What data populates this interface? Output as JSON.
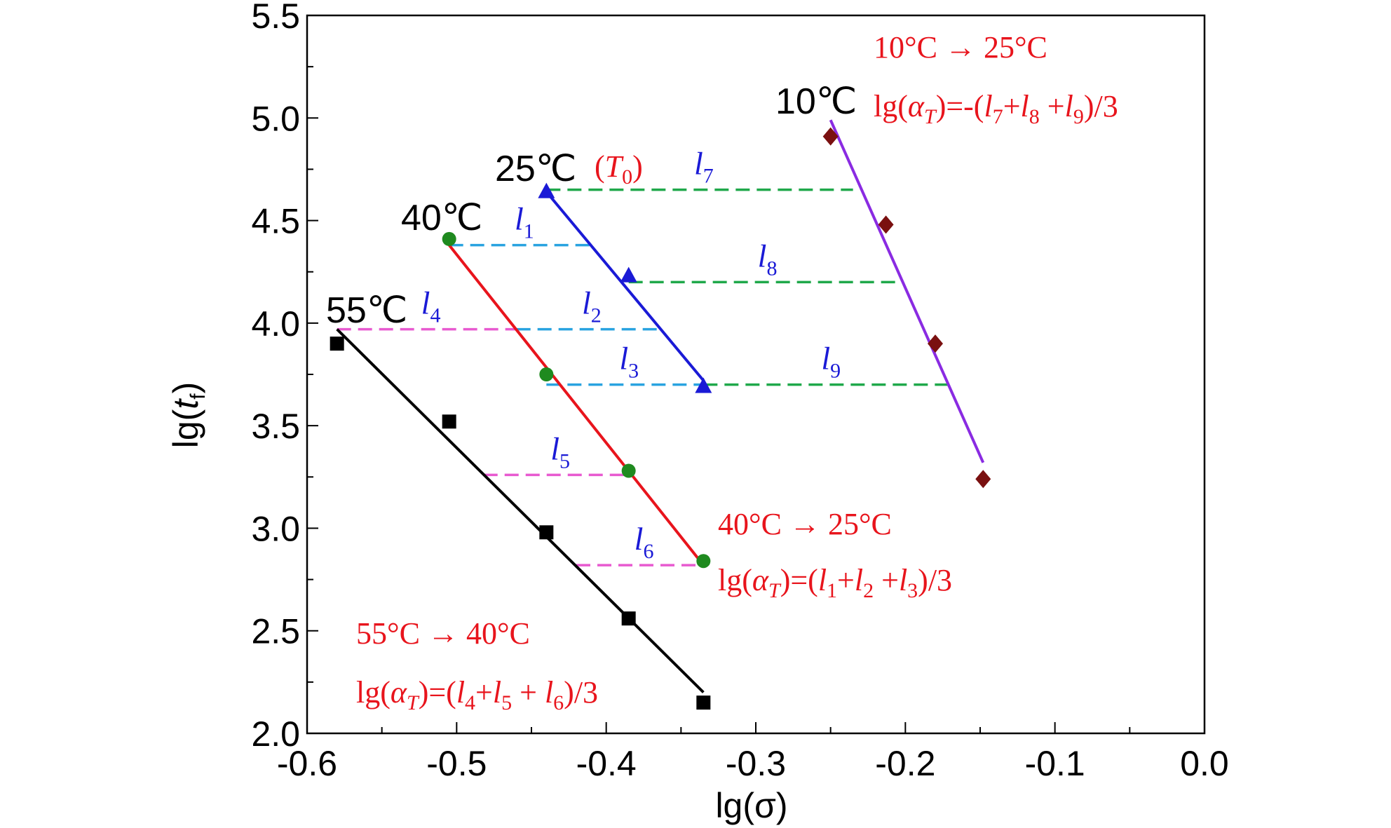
{
  "chart_data": {
    "type": "scatter",
    "xlabel": "lg(σ)",
    "ylabel": "lg(t_f)",
    "xlim": [
      -0.6,
      0.0
    ],
    "ylim": [
      2.0,
      5.5
    ],
    "xticks": [
      "-0.6",
      "-0.5",
      "-0.4",
      "-0.3",
      "-0.2",
      "-0.1",
      "0.0"
    ],
    "yticks": [
      "2.0",
      "2.5",
      "3.0",
      "3.5",
      "4.0",
      "4.5",
      "5.0",
      "5.5"
    ],
    "grid": false,
    "series": [
      {
        "name": "55℃",
        "color": "#000000",
        "marker": "square",
        "points": [
          [
            -0.58,
            3.9
          ],
          [
            -0.505,
            3.52
          ],
          [
            -0.44,
            2.98
          ],
          [
            -0.385,
            2.56
          ],
          [
            -0.335,
            2.15
          ]
        ],
        "fit": [
          [
            -0.58,
            3.97
          ],
          [
            -0.335,
            2.2
          ]
        ]
      },
      {
        "name": "40℃",
        "color": "#e8141c",
        "marker": "circle",
        "marker_color": "#1f8a1f",
        "points": [
          [
            -0.505,
            4.41
          ],
          [
            -0.44,
            3.75
          ],
          [
            -0.385,
            3.28
          ],
          [
            -0.335,
            2.84
          ]
        ],
        "fit": [
          [
            -0.505,
            4.38
          ],
          [
            -0.335,
            2.82
          ]
        ]
      },
      {
        "name": "25℃",
        "color": "#1a1ad6",
        "marker": "triangle",
        "points": [
          [
            -0.44,
            4.64
          ],
          [
            -0.385,
            4.23
          ],
          [
            -0.335,
            3.69
          ]
        ],
        "fit": [
          [
            -0.44,
            4.64
          ],
          [
            -0.335,
            3.72
          ]
        ]
      },
      {
        "name": "10℃",
        "color": "#8a2be2",
        "marker": "diamond",
        "marker_color": "#7a1010",
        "points": [
          [
            -0.25,
            4.91
          ],
          [
            -0.213,
            4.48
          ],
          [
            -0.18,
            3.9
          ],
          [
            -0.148,
            3.24
          ]
        ],
        "fit": [
          [
            -0.25,
            4.99
          ],
          [
            -0.148,
            3.32
          ]
        ]
      }
    ],
    "shifts": [
      {
        "label": "1",
        "color": "#29a3e0",
        "y": 4.38,
        "x1": -0.505,
        "x2": -0.41
      },
      {
        "label": "2",
        "color": "#29a3e0",
        "y": 3.97,
        "x1": -0.46,
        "x2": -0.365
      },
      {
        "label": "3",
        "color": "#29a3e0",
        "y": 3.7,
        "x1": -0.44,
        "x2": -0.335
      },
      {
        "label": "4",
        "color": "#e85ad0",
        "y": 3.97,
        "x1": -0.58,
        "x2": -0.46
      },
      {
        "label": "5",
        "color": "#e85ad0",
        "y": 3.26,
        "x1": -0.482,
        "x2": -0.385
      },
      {
        "label": "6",
        "color": "#e85ad0",
        "y": 2.82,
        "x1": -0.42,
        "x2": -0.335
      },
      {
        "label": "7",
        "color": "#1fa84a",
        "y": 4.65,
        "x1": -0.44,
        "x2": -0.235
      },
      {
        "label": "8",
        "color": "#1fa84a",
        "y": 4.2,
        "x1": -0.385,
        "x2": -0.205
      },
      {
        "label": "9",
        "color": "#1fa84a",
        "y": 3.7,
        "x1": -0.335,
        "x2": -0.17
      }
    ],
    "temp_labels": [
      "55℃",
      "40℃",
      "25℃",
      "10℃"
    ],
    "t0_label": "(T0)",
    "annotations": {
      "a10": {
        "line1": "10°C → 25°C",
        "line2": "lg(αT)=-(l7+l8 +l9)/3"
      },
      "a40": {
        "line1": "40°C → 25°C",
        "line2": "lg(αT)=(l1+l2 +l3)/3"
      },
      "a55": {
        "line1": "55°C → 40°C",
        "line2": "lg(αT)=(l4+l5 + l6)/3"
      }
    }
  }
}
